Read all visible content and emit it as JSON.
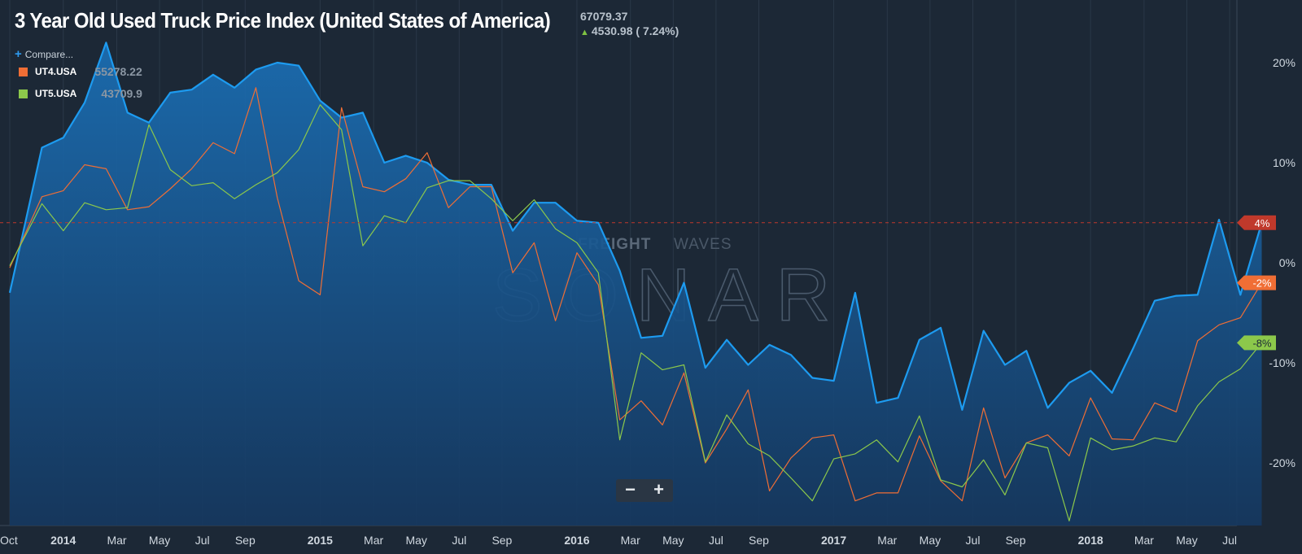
{
  "header": {
    "title": "3 Year Old Used Truck Price Index (United States of America)",
    "current_value": "67079.37",
    "change_text": "4530.98 ( 7.24%)",
    "change_icon": "up-arrow-icon"
  },
  "toolbar": {
    "compare_label": "Compare...",
    "compare_icon": "plus-icon",
    "zoom_out_label": "−",
    "zoom_in_label": "+"
  },
  "legend": [
    {
      "ticker": "UT4.USA",
      "value": "55278.22",
      "color": "#f06e35"
    },
    {
      "ticker": "UT5.USA",
      "value": "43709.9",
      "color": "#8cc84b"
    }
  ],
  "watermark": {
    "brand_left": "FREIGHT",
    "brand_right": "WAVES",
    "product": "SONAR"
  },
  "colors": {
    "background": "#1c2836",
    "main_series": "#1d9bf0",
    "ut4": "#f06e35",
    "ut5": "#8cc84b",
    "reference_line": "#c0392b"
  },
  "chart_data": {
    "type": "line",
    "x_labels": [
      "Oct",
      "2014",
      "Mar",
      "May",
      "Jul",
      "Sep",
      "2015",
      "Mar",
      "May",
      "Jul",
      "Sep",
      "2016",
      "Mar",
      "May",
      "Jul",
      "Sep",
      "2017",
      "Mar",
      "May",
      "Jul",
      "Sep",
      "2018",
      "Mar",
      "May",
      "Jul"
    ],
    "y_ticks": [
      "20%",
      "10%",
      "0%",
      "-10%",
      "-20%"
    ],
    "ylim": [
      -26,
      26
    ],
    "grid": "vertical",
    "reference_line": 4,
    "end_labels": [
      {
        "text": "4%",
        "value": 4,
        "color": "#c0392b"
      },
      {
        "text": "-2%",
        "value": -2,
        "color": "#f06e35"
      },
      {
        "text": "-8%",
        "value": -8,
        "color": "#8cc84b"
      }
    ],
    "series": [
      {
        "name": "3 Year Old Used Truck Price Index",
        "style": "area",
        "color": "#1d9bf0",
        "points": [
          [
            0,
            -3
          ],
          [
            0.75,
            11.5
          ],
          [
            1.25,
            12.5
          ],
          [
            1.75,
            16
          ],
          [
            2.25,
            22
          ],
          [
            2.75,
            15
          ],
          [
            3.25,
            14
          ],
          [
            3.75,
            17
          ],
          [
            4.25,
            17.3
          ],
          [
            4.75,
            18.8
          ],
          [
            5.25,
            17.5
          ],
          [
            5.75,
            19.3
          ],
          [
            6.25,
            20
          ],
          [
            6.75,
            19.7
          ],
          [
            7.25,
            16.2
          ],
          [
            7.75,
            14.5
          ],
          [
            8.25,
            15
          ],
          [
            8.75,
            10
          ],
          [
            9.25,
            10.7
          ],
          [
            9.75,
            10
          ],
          [
            10.25,
            8.3
          ],
          [
            10.75,
            7.8
          ],
          [
            11.25,
            7.8
          ],
          [
            11.75,
            3.2
          ],
          [
            12.25,
            6
          ],
          [
            12.75,
            6
          ],
          [
            13.25,
            4.2
          ],
          [
            13.75,
            4
          ],
          [
            14.25,
            -0.8
          ],
          [
            14.75,
            -7.5
          ],
          [
            15.25,
            -7.3
          ],
          [
            15.75,
            -2
          ],
          [
            16.25,
            -10.5
          ],
          [
            16.75,
            -7.7
          ],
          [
            17.25,
            -10.2
          ],
          [
            17.75,
            -8.2
          ],
          [
            18.25,
            -9.2
          ],
          [
            18.75,
            -11.5
          ],
          [
            19.25,
            -11.8
          ],
          [
            19.75,
            -3
          ],
          [
            20.25,
            -14
          ],
          [
            20.75,
            -13.5
          ],
          [
            21.25,
            -7.7
          ],
          [
            21.75,
            -6.5
          ],
          [
            22.25,
            -14.7
          ],
          [
            22.75,
            -6.8
          ],
          [
            23.25,
            -10.2
          ],
          [
            23.75,
            -8.8
          ],
          [
            24.25,
            -14.5
          ],
          [
            24.75,
            -12
          ],
          [
            25.25,
            -10.8
          ],
          [
            25.75,
            -13
          ],
          [
            26.25,
            -8.5
          ],
          [
            26.75,
            -3.8
          ],
          [
            27.25,
            -3.3
          ],
          [
            27.75,
            -3.2
          ],
          [
            28.25,
            4.3
          ],
          [
            28.75,
            -3.2
          ],
          [
            29.25,
            4
          ]
        ]
      },
      {
        "name": "UT4.USA",
        "style": "line",
        "color": "#f06e35",
        "points": [
          [
            0,
            -0.5
          ],
          [
            0.75,
            6.6
          ],
          [
            1.25,
            7.2
          ],
          [
            1.75,
            9.8
          ],
          [
            2.25,
            9.4
          ],
          [
            2.75,
            5.3
          ],
          [
            3.25,
            5.6
          ],
          [
            3.75,
            7.4
          ],
          [
            4.25,
            9.4
          ],
          [
            4.75,
            12
          ],
          [
            5.25,
            10.9
          ],
          [
            5.75,
            17.5
          ],
          [
            6.25,
            6.5
          ],
          [
            6.75,
            -1.8
          ],
          [
            7.25,
            -3.2
          ],
          [
            7.75,
            15.5
          ],
          [
            8.25,
            7.6
          ],
          [
            8.75,
            7.1
          ],
          [
            9.25,
            8.4
          ],
          [
            9.75,
            11
          ],
          [
            10.25,
            5.5
          ],
          [
            10.75,
            7.6
          ],
          [
            11.25,
            7.6
          ],
          [
            11.75,
            -1
          ],
          [
            12.25,
            2
          ],
          [
            12.75,
            -5.8
          ],
          [
            13.25,
            1
          ],
          [
            13.75,
            -2.2
          ],
          [
            14.25,
            -15.7
          ],
          [
            14.75,
            -13.8
          ],
          [
            15.25,
            -16.2
          ],
          [
            15.75,
            -11
          ],
          [
            16.25,
            -20
          ],
          [
            16.75,
            -16.6
          ],
          [
            17.25,
            -12.7
          ],
          [
            17.75,
            -22.8
          ],
          [
            18.25,
            -19.5
          ],
          [
            18.75,
            -17.5
          ],
          [
            19.25,
            -17.2
          ],
          [
            19.75,
            -23.8
          ],
          [
            20.25,
            -23
          ],
          [
            20.75,
            -23
          ],
          [
            21.25,
            -17.3
          ],
          [
            21.75,
            -21.8
          ],
          [
            22.25,
            -23.8
          ],
          [
            22.75,
            -14.5
          ],
          [
            23.25,
            -21.5
          ],
          [
            23.75,
            -18
          ],
          [
            24.25,
            -17.2
          ],
          [
            24.75,
            -19.3
          ],
          [
            25.25,
            -13.5
          ],
          [
            25.75,
            -17.6
          ],
          [
            26.25,
            -17.7
          ],
          [
            26.75,
            -14
          ],
          [
            27.25,
            -14.9
          ],
          [
            27.75,
            -7.8
          ],
          [
            28.25,
            -6.2
          ],
          [
            28.75,
            -5.5
          ],
          [
            29.25,
            -2
          ]
        ]
      },
      {
        "name": "UT5.USA",
        "style": "line",
        "color": "#8cc84b",
        "points": [
          [
            0,
            -0.3
          ],
          [
            0.75,
            5.9
          ],
          [
            1.25,
            3.2
          ],
          [
            1.75,
            6
          ],
          [
            2.25,
            5.3
          ],
          [
            2.75,
            5.5
          ],
          [
            3.25,
            13.8
          ],
          [
            3.75,
            9.3
          ],
          [
            4.25,
            7.7
          ],
          [
            4.75,
            8
          ],
          [
            5.25,
            6.4
          ],
          [
            5.75,
            7.8
          ],
          [
            6.25,
            9
          ],
          [
            6.75,
            11.3
          ],
          [
            7.25,
            15.8
          ],
          [
            7.75,
            13.3
          ],
          [
            8.25,
            1.7
          ],
          [
            8.75,
            4.7
          ],
          [
            9.25,
            4
          ],
          [
            9.75,
            7.5
          ],
          [
            10.25,
            8.2
          ],
          [
            10.75,
            8.2
          ],
          [
            11.25,
            6.4
          ],
          [
            11.75,
            4.2
          ],
          [
            12.25,
            6.3
          ],
          [
            12.75,
            3.4
          ],
          [
            13.25,
            2
          ],
          [
            13.75,
            -1
          ],
          [
            14.25,
            -17.7
          ],
          [
            14.75,
            -9
          ],
          [
            15.25,
            -10.7
          ],
          [
            15.75,
            -10.2
          ],
          [
            16.25,
            -19.9
          ],
          [
            16.75,
            -15.2
          ],
          [
            17.25,
            -18.1
          ],
          [
            17.75,
            -19.3
          ],
          [
            18.25,
            -21.5
          ],
          [
            18.75,
            -23.8
          ],
          [
            19.25,
            -19.6
          ],
          [
            19.75,
            -19.1
          ],
          [
            20.25,
            -17.7
          ],
          [
            20.75,
            -19.9
          ],
          [
            21.25,
            -15.3
          ],
          [
            21.75,
            -21.7
          ],
          [
            22.25,
            -22.4
          ],
          [
            22.75,
            -19.7
          ],
          [
            23.25,
            -23.2
          ],
          [
            23.75,
            -18
          ],
          [
            24.25,
            -18.5
          ],
          [
            24.75,
            -25.8
          ],
          [
            25.25,
            -17.5
          ],
          [
            25.75,
            -18.7
          ],
          [
            26.25,
            -18.3
          ],
          [
            26.75,
            -17.5
          ],
          [
            27.25,
            -17.9
          ],
          [
            27.75,
            -14.3
          ],
          [
            28.25,
            -11.9
          ],
          [
            28.75,
            -10.6
          ],
          [
            29.25,
            -8
          ]
        ]
      }
    ]
  }
}
